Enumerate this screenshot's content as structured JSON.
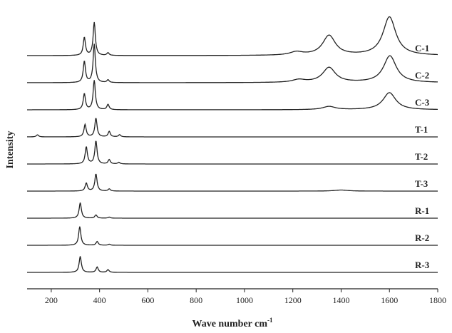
{
  "chart_data": {
    "type": "line",
    "title": "",
    "xlabel": "Wave number cm",
    "xlabel_superscript": "-1",
    "ylabel": "Intensity",
    "xlim": [
      100,
      1800
    ],
    "x_ticks": [
      200,
      400,
      600,
      800,
      1000,
      1200,
      1400,
      1600,
      1800
    ],
    "grid": false,
    "legend": "labels at right end of each stacked trace",
    "series": [
      {
        "name": "C-1",
        "peaks": [
          [
            337,
            0.34
          ],
          [
            378,
            0.62
          ],
          [
            435,
            0.05
          ],
          [
            1215,
            0.06
          ],
          [
            1350,
            0.37
          ],
          [
            1600,
            0.72
          ]
        ]
      },
      {
        "name": "C-2",
        "peaks": [
          [
            337,
            0.4
          ],
          [
            378,
            0.72
          ],
          [
            435,
            0.05
          ],
          [
            1225,
            0.05
          ],
          [
            1350,
            0.28
          ],
          [
            1602,
            0.5
          ]
        ]
      },
      {
        "name": "C-3",
        "peaks": [
          [
            337,
            0.3
          ],
          [
            378,
            0.55
          ],
          [
            435,
            0.1
          ],
          [
            1350,
            0.06
          ],
          [
            1600,
            0.32
          ]
        ]
      },
      {
        "name": "T-1",
        "peaks": [
          [
            143,
            0.04
          ],
          [
            340,
            0.23
          ],
          [
            385,
            0.35
          ],
          [
            440,
            0.1
          ],
          [
            483,
            0.04
          ]
        ]
      },
      {
        "name": "T-2",
        "peaks": [
          [
            345,
            0.32
          ],
          [
            385,
            0.43
          ],
          [
            440,
            0.08
          ],
          [
            480,
            0.03
          ]
        ]
      },
      {
        "name": "T-3",
        "peaks": [
          [
            345,
            0.15
          ],
          [
            385,
            0.32
          ],
          [
            440,
            0.04
          ],
          [
            1400,
            0.02
          ]
        ]
      },
      {
        "name": "R-1",
        "peaks": [
          [
            320,
            0.29
          ],
          [
            385,
            0.06
          ],
          [
            440,
            0.02
          ]
        ]
      },
      {
        "name": "R-2",
        "peaks": [
          [
            318,
            0.35
          ],
          [
            390,
            0.07
          ],
          [
            440,
            0.02
          ]
        ]
      },
      {
        "name": "R-3",
        "peaks": [
          [
            320,
            0.3
          ],
          [
            390,
            0.1
          ],
          [
            435,
            0.05
          ]
        ]
      }
    ]
  }
}
